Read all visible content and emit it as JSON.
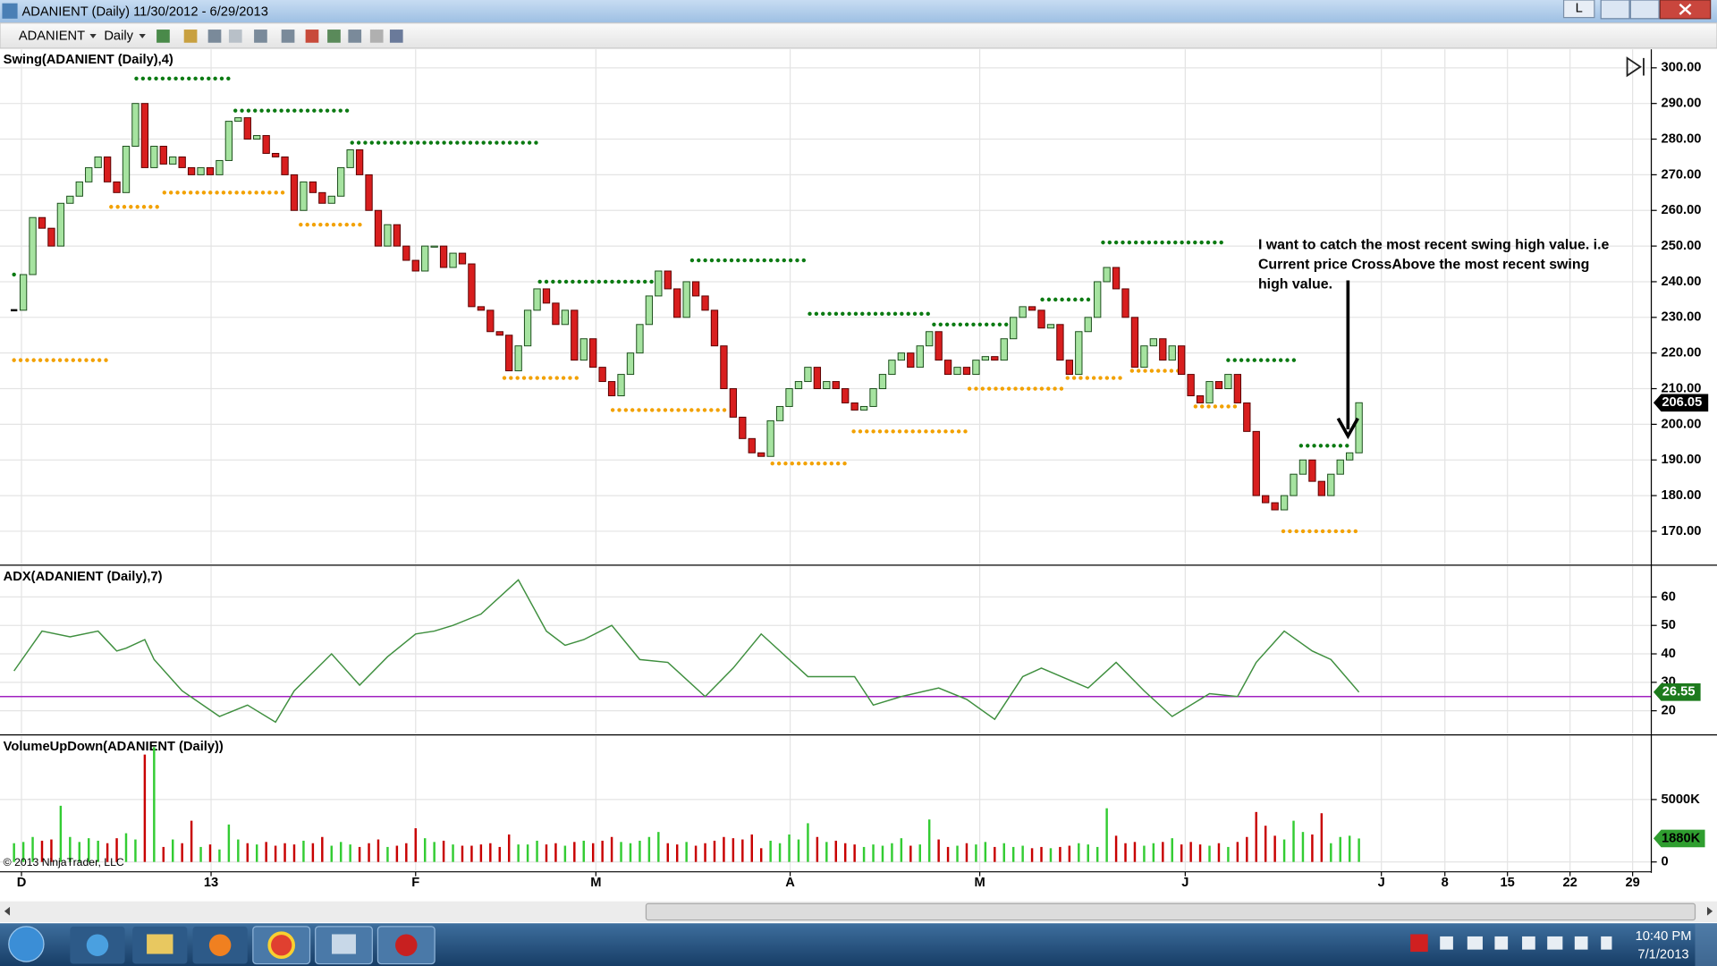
{
  "window": {
    "title": "ADANIENT (Daily)  11/30/2012 - 6/29/2013",
    "layout_button": "L",
    "symbol": "ADANIENT",
    "interval": "Daily",
    "copyright": "© 2013 NinjaTrader, LLC"
  },
  "annotation": [
    "I want to catch the most recent swing high value. i.e",
    "Current price CrossAbove the most recent swing",
    "high value."
  ],
  "taskbar": {
    "time": "10:40 PM",
    "date": "7/1/2013"
  },
  "chart_data": [
    {
      "type": "candlestick",
      "title": "Swing(ADANIENT (Daily),4)",
      "up_color": "#a6e3a0",
      "down_color": "#d81e1e",
      "swing_high_color": "#0b7a12",
      "swing_low_color": "#f2a100",
      "close": [
        232,
        242,
        258,
        255,
        250,
        262,
        264,
        268,
        272,
        275,
        268,
        265,
        278,
        290,
        272,
        278,
        273,
        275,
        272,
        270,
        272,
        270,
        274,
        285,
        286,
        280,
        281,
        276,
        275,
        270,
        260,
        268,
        265,
        262,
        264,
        272,
        277,
        270,
        260,
        250,
        256,
        250,
        246,
        243,
        250,
        250,
        244,
        248,
        245,
        233,
        232,
        226,
        225,
        215,
        222,
        232,
        238,
        234,
        228,
        232,
        218,
        224,
        216,
        212,
        208,
        214,
        220,
        228,
        236,
        243,
        238,
        230,
        240,
        236,
        232,
        222,
        210,
        202,
        196,
        192,
        191,
        201,
        205,
        210,
        212,
        216,
        210,
        212,
        210,
        206,
        204,
        205,
        210,
        214,
        218,
        220,
        216,
        222,
        226,
        218,
        214,
        216,
        214,
        218,
        219,
        218,
        224,
        230,
        233,
        232,
        227,
        228,
        218,
        214,
        226,
        230,
        240,
        244,
        238,
        230,
        216,
        222,
        224,
        218,
        222,
        214,
        208,
        206,
        212,
        210,
        214,
        206,
        198,
        180,
        178,
        176,
        180,
        186,
        190,
        184,
        180,
        186,
        190,
        192,
        206.05
      ],
      "swing_highs": [
        {
          "value": 242,
          "start": 0,
          "end": 0
        },
        {
          "value": 297,
          "start": 13.1,
          "end": 23.3
        },
        {
          "value": 288,
          "start": 23.7,
          "end": 35.8
        },
        {
          "value": 279,
          "start": 36.2,
          "end": 55.9
        },
        {
          "value": 240,
          "start": 56.3,
          "end": 68.5
        },
        {
          "value": 246,
          "start": 72.6,
          "end": 84.6
        },
        {
          "value": 231,
          "start": 85.2,
          "end": 98.1
        },
        {
          "value": 228,
          "start": 98.5,
          "end": 106.8
        },
        {
          "value": 235,
          "start": 110.1,
          "end": 115.4
        },
        {
          "value": 251,
          "start": 116.6,
          "end": 129.5
        },
        {
          "value": 218,
          "start": 130,
          "end": 137.2
        },
        {
          "value": 194,
          "start": 137.8,
          "end": 142.9
        }
      ],
      "swing_lows": [
        {
          "value": 218,
          "start": 0,
          "end": 10
        },
        {
          "value": 261,
          "start": 10.4,
          "end": 15.7
        },
        {
          "value": 265,
          "start": 16.1,
          "end": 29.2
        },
        {
          "value": 256,
          "start": 30.7,
          "end": 37.7
        },
        {
          "value": 213,
          "start": 52.5,
          "end": 60.6
        },
        {
          "value": 204,
          "start": 64.1,
          "end": 76.7
        },
        {
          "value": 189,
          "start": 81.2,
          "end": 89.2
        },
        {
          "value": 198,
          "start": 89.9,
          "end": 101.9
        },
        {
          "value": 210,
          "start": 102.3,
          "end": 112.2
        },
        {
          "value": 213,
          "start": 112.8,
          "end": 118.9
        },
        {
          "value": 215,
          "start": 119.7,
          "end": 124.9
        },
        {
          "value": 205,
          "start": 126.5,
          "end": 131
        },
        {
          "value": 170,
          "start": 135.9,
          "end": 143.8
        }
      ],
      "ylim": [
        160.8,
        305.2
      ],
      "yticks": [
        {
          "value": 170,
          "label": "170.00"
        },
        {
          "value": 180,
          "label": "180.00"
        },
        {
          "value": 190,
          "label": "190.00"
        },
        {
          "value": 200,
          "label": "200.00"
        },
        {
          "value": 210,
          "label": "210.00"
        },
        {
          "value": 220,
          "label": "220.00"
        },
        {
          "value": 230,
          "label": "230.00"
        },
        {
          "value": 240,
          "label": "240.00"
        },
        {
          "value": 250,
          "label": "250.00"
        },
        {
          "value": 260,
          "label": "260.00"
        },
        {
          "value": 270,
          "label": "270.00"
        },
        {
          "value": 280,
          "label": "280.00"
        },
        {
          "value": 290,
          "label": "290.00"
        },
        {
          "value": 300,
          "label": "300.00"
        }
      ],
      "grid": true
    },
    {
      "type": "line",
      "title": "ADX(ADANIENT (Daily),7)",
      "color": "#3f8f3f",
      "level": 25,
      "level_color": "#a020c0",
      "label_color": "#1c7a1c",
      "x": [
        0,
        3,
        6,
        9,
        11,
        12,
        14,
        15,
        18,
        22,
        25,
        28,
        30,
        34,
        37,
        40,
        43,
        45,
        47,
        50,
        54,
        57,
        59,
        61,
        64,
        67,
        70,
        74,
        77,
        80,
        85,
        90,
        92,
        95,
        99,
        102,
        105,
        108,
        110,
        115,
        118,
        121,
        124,
        128,
        131,
        133,
        136,
        139,
        141,
        144
      ],
      "values": [
        34,
        48,
        46,
        48,
        41,
        42,
        45,
        38,
        27,
        18,
        22,
        16,
        27,
        40,
        29,
        39,
        47,
        48,
        50,
        54,
        66,
        48,
        43,
        45,
        50,
        38,
        37,
        25,
        35,
        47,
        32,
        32,
        22,
        25,
        28,
        24,
        17,
        32,
        35,
        28,
        37,
        27,
        18,
        26,
        25,
        37,
        48,
        41,
        38,
        26.55
      ],
      "ylim": [
        11.9,
        70.8
      ],
      "yticks": [
        20,
        30,
        40,
        50,
        60
      ],
      "grid": true
    },
    {
      "type": "bar",
      "title": "VolumeUpDown(ADANIENT (Daily))",
      "up_color": "#33cc33",
      "down_color": "#c80000",
      "values": [
        1500,
        1600,
        2000,
        1700,
        1800,
        4500,
        2000,
        1600,
        1900,
        1700,
        1500,
        1900,
        2300,
        1800,
        8600,
        9200,
        1200,
        1800,
        1500,
        3300,
        1200,
        1400,
        1000,
        3000,
        1800,
        1500,
        1400,
        1600,
        1300,
        1500,
        1400,
        1700,
        1500,
        2000,
        1300,
        1600,
        1400,
        1200,
        1500,
        1800,
        1200,
        1300,
        1500,
        2700,
        1900,
        1600,
        1700,
        1400,
        1300,
        1300,
        1400,
        1500,
        1200,
        2200,
        1400,
        1400,
        1700,
        1400,
        1500,
        1300,
        1600,
        1700,
        1500,
        1700,
        2000,
        1600,
        1500,
        1700,
        2000,
        2400,
        1500,
        1400,
        1600,
        1300,
        1500,
        1700,
        2000,
        1900,
        1800,
        2200,
        1100,
        1700,
        1500,
        2200,
        1800,
        3100,
        2000,
        1600,
        1700,
        1500,
        1400,
        1200,
        1400,
        1300,
        1500,
        1900,
        1300,
        1400,
        3400,
        1800,
        1200,
        1300,
        1500,
        1400,
        1600,
        1200,
        1500,
        1200,
        1300,
        1100,
        1200,
        1100,
        1200,
        1300,
        1500,
        1400,
        1200,
        4300,
        2100,
        1500,
        1600,
        1300,
        1500,
        1600,
        1900,
        1400,
        1600,
        1400,
        1300,
        1500,
        1200,
        1600,
        2000,
        4000,
        2900,
        2100,
        1800,
        3300,
        2400,
        2200,
        3900,
        1500,
        2000,
        2100,
        1880
      ],
      "current_label": "1880K",
      "ylim": [
        -702,
        10088
      ],
      "yticks": [
        0,
        {
          "value": 5000,
          "label": "5000K"
        }
      ],
      "xlim": [
        -1.5,
        175.3
      ],
      "xticks": [
        {
          "value": 0.8,
          "label": "D"
        },
        {
          "value": 21.1,
          "label": "13"
        },
        {
          "value": 43,
          "label": "F"
        },
        {
          "value": 62.3,
          "label": "M"
        },
        {
          "value": 83.1,
          "label": "A"
        },
        {
          "value": 103.4,
          "label": "M"
        },
        {
          "value": 125.4,
          "label": "J"
        },
        {
          "value": 146.4,
          "label": "J"
        },
        {
          "value": 153.2,
          "label": "8"
        },
        {
          "value": 159.9,
          "label": "15"
        },
        {
          "value": 166.6,
          "label": "22"
        },
        {
          "value": 173.3,
          "label": "29"
        }
      ],
      "grid": true
    }
  ]
}
